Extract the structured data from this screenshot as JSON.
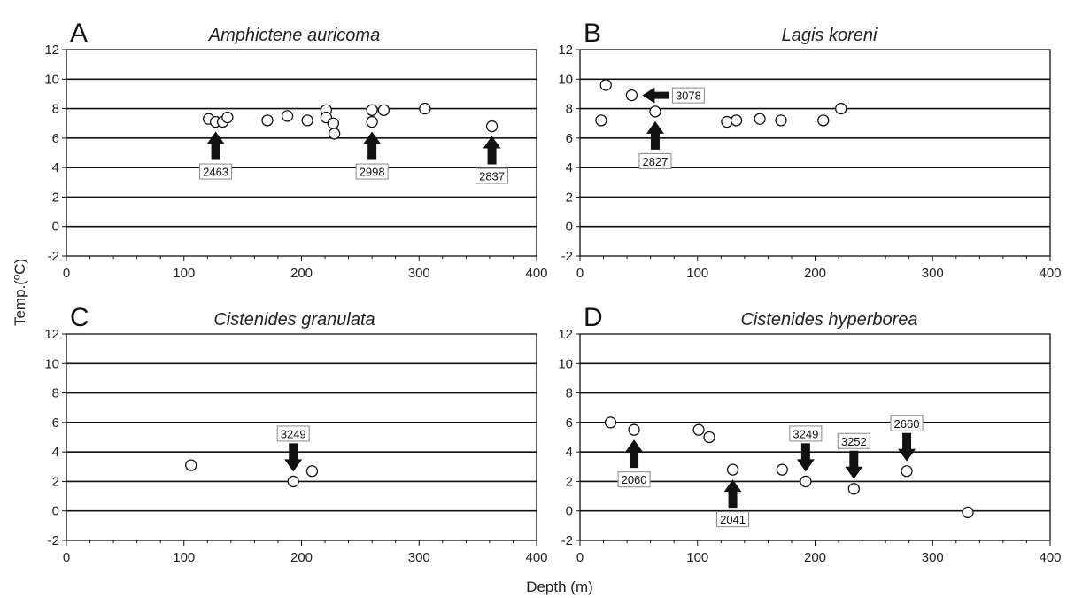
{
  "figure": {
    "ylabel": "Temp.(ºC)",
    "xlabel": "Depth (m)"
  },
  "chart_data": [
    {
      "panel": "A",
      "title": "Amphictene auricoma",
      "type": "scatter",
      "xlim": [
        0,
        400
      ],
      "ylim": [
        -2,
        12
      ],
      "xticks": [
        0,
        100,
        200,
        300,
        400
      ],
      "yticks": [
        -2,
        0,
        2,
        4,
        6,
        8,
        10,
        12
      ],
      "grid": "horizontal",
      "points": [
        {
          "x": 121,
          "y": 7.3
        },
        {
          "x": 127,
          "y": 7.1
        },
        {
          "x": 133,
          "y": 7.1
        },
        {
          "x": 137,
          "y": 7.4
        },
        {
          "x": 171,
          "y": 7.2
        },
        {
          "x": 188,
          "y": 7.5
        },
        {
          "x": 205,
          "y": 7.2
        },
        {
          "x": 221,
          "y": 7.9
        },
        {
          "x": 221,
          "y": 7.4
        },
        {
          "x": 227,
          "y": 7.0
        },
        {
          "x": 228,
          "y": 6.3
        },
        {
          "x": 260,
          "y": 7.9
        },
        {
          "x": 260,
          "y": 7.1
        },
        {
          "x": 270,
          "y": 7.9
        },
        {
          "x": 305,
          "y": 8.0
        },
        {
          "x": 362,
          "y": 6.8
        }
      ],
      "annotations": [
        {
          "label": "2463",
          "x": 127,
          "y": 7.1,
          "arrow": "up"
        },
        {
          "label": "2998",
          "x": 260,
          "y": 7.1,
          "arrow": "up"
        },
        {
          "label": "2837",
          "x": 362,
          "y": 6.8,
          "arrow": "up"
        }
      ]
    },
    {
      "panel": "B",
      "title": "Lagis koreni",
      "type": "scatter",
      "xlim": [
        0,
        400
      ],
      "ylim": [
        -2,
        12
      ],
      "xticks": [
        0,
        100,
        200,
        300,
        400
      ],
      "yticks": [
        -2,
        0,
        2,
        4,
        6,
        8,
        10,
        12
      ],
      "grid": "horizontal",
      "points": [
        {
          "x": 18,
          "y": 7.2
        },
        {
          "x": 22,
          "y": 9.6
        },
        {
          "x": 44,
          "y": 8.9
        },
        {
          "x": 64,
          "y": 7.8
        },
        {
          "x": 125,
          "y": 7.1
        },
        {
          "x": 133,
          "y": 7.2
        },
        {
          "x": 153,
          "y": 7.3
        },
        {
          "x": 171,
          "y": 7.2
        },
        {
          "x": 207,
          "y": 7.2
        },
        {
          "x": 222,
          "y": 8.0
        }
      ],
      "annotations": [
        {
          "label": "3078",
          "x": 44,
          "y": 8.9,
          "arrow": "left"
        },
        {
          "label": "2827",
          "x": 64,
          "y": 7.8,
          "arrow": "up"
        }
      ]
    },
    {
      "panel": "C",
      "title": "Cistenides granulata",
      "type": "scatter",
      "xlim": [
        0,
        400
      ],
      "ylim": [
        -2,
        12
      ],
      "xticks": [
        0,
        100,
        200,
        300,
        400
      ],
      "yticks": [
        -2,
        0,
        2,
        4,
        6,
        8,
        10,
        12
      ],
      "grid": "horizontal",
      "points": [
        {
          "x": 106,
          "y": 3.1
        },
        {
          "x": 193,
          "y": 2.0
        },
        {
          "x": 209,
          "y": 2.7
        }
      ],
      "annotations": [
        {
          "label": "3249",
          "x": 193,
          "y": 2.0,
          "arrow": "down"
        }
      ]
    },
    {
      "panel": "D",
      "title": "Cistenides hyperborea",
      "type": "scatter",
      "xlim": [
        0,
        400
      ],
      "ylim": [
        -2,
        12
      ],
      "xticks": [
        0,
        100,
        200,
        300,
        400
      ],
      "yticks": [
        -2,
        0,
        2,
        4,
        6,
        8,
        10,
        12
      ],
      "grid": "horizontal",
      "points": [
        {
          "x": 26,
          "y": 6.0
        },
        {
          "x": 46,
          "y": 5.5
        },
        {
          "x": 101,
          "y": 5.5
        },
        {
          "x": 110,
          "y": 5.0
        },
        {
          "x": 130,
          "y": 2.8
        },
        {
          "x": 172,
          "y": 2.8
        },
        {
          "x": 192,
          "y": 2.0
        },
        {
          "x": 233,
          "y": 1.5
        },
        {
          "x": 278,
          "y": 2.7
        },
        {
          "x": 330,
          "y": -0.1
        }
      ],
      "annotations": [
        {
          "label": "2060",
          "x": 46,
          "y": 5.5,
          "arrow": "up"
        },
        {
          "label": "2041",
          "x": 130,
          "y": 2.8,
          "arrow": "up"
        },
        {
          "label": "3249",
          "x": 192,
          "y": 2.0,
          "arrow": "down"
        },
        {
          "label": "3252",
          "x": 233,
          "y": 1.5,
          "arrow": "down"
        },
        {
          "label": "2660",
          "x": 278,
          "y": 2.7,
          "arrow": "down"
        }
      ]
    }
  ]
}
